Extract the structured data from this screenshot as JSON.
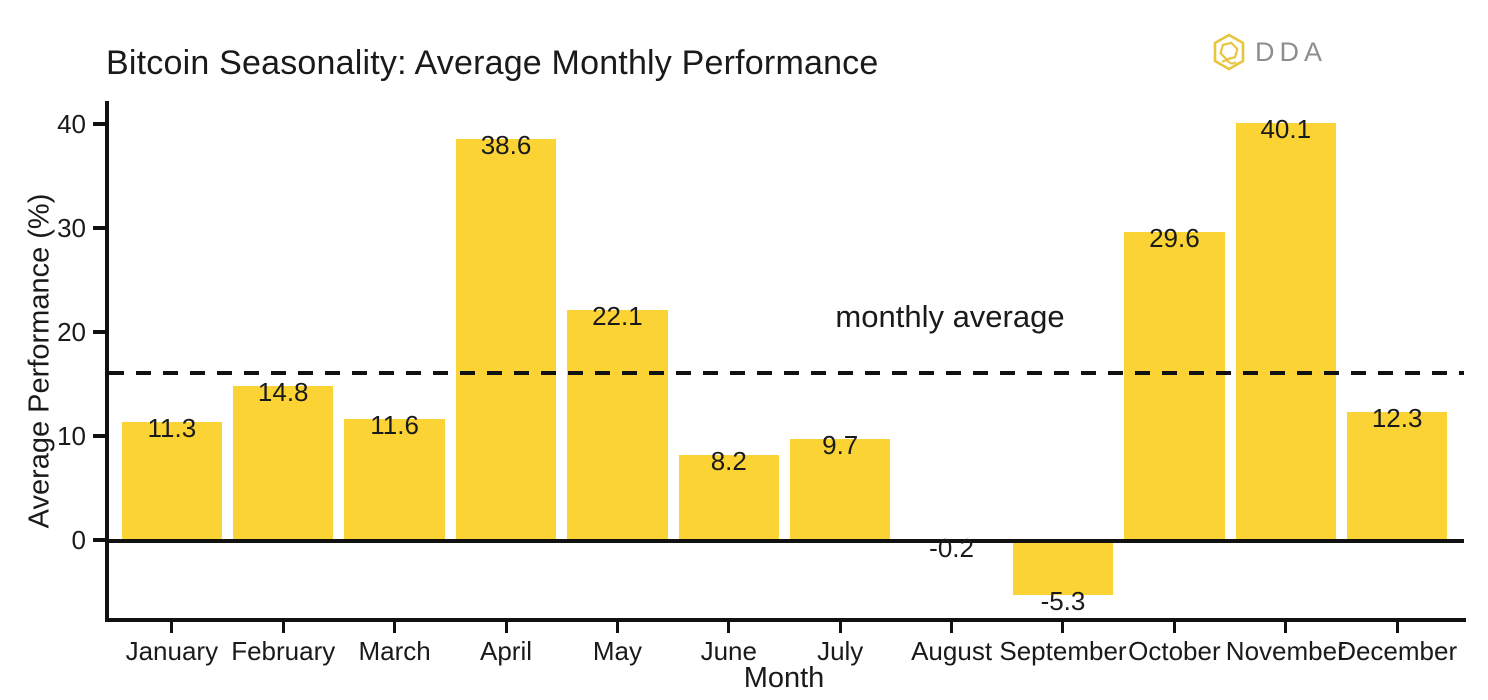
{
  "header": {
    "logo": {
      "brand": "DDA",
      "icon": "hexagon-knot-icon",
      "icon_color": "#E8C53F",
      "text_color": "#8E8E8E"
    }
  },
  "chart_data": {
    "type": "bar",
    "title": "Bitcoin Seasonality: Average Monthly Performance",
    "xlabel": "Month",
    "ylabel": "Average Performance (%)",
    "categories": [
      "January",
      "February",
      "March",
      "April",
      "May",
      "June",
      "July",
      "August",
      "September",
      "October",
      "November",
      "December"
    ],
    "values": [
      11.3,
      14.8,
      11.6,
      38.6,
      22.1,
      8.2,
      9.7,
      -0.2,
      -5.3,
      29.6,
      40.1,
      12.3
    ],
    "value_labels": [
      "11.3",
      "14.8",
      "11.6",
      "38.6",
      "22.1",
      "8.2",
      "9.7",
      "-0.2",
      "-5.3",
      "29.6",
      "40.1",
      "12.3"
    ],
    "bar_color": "#FBD335",
    "axis_color": "#111111",
    "text_color": "#1a1a1a",
    "y_ticks": [
      0,
      10,
      20,
      30,
      40
    ],
    "ylim": [
      -7.6,
      42.2
    ],
    "grid": false,
    "legend": false,
    "reference_line": {
      "label": "monthly average",
      "value": 16.1,
      "style": "dashed",
      "color": "#111111"
    }
  }
}
